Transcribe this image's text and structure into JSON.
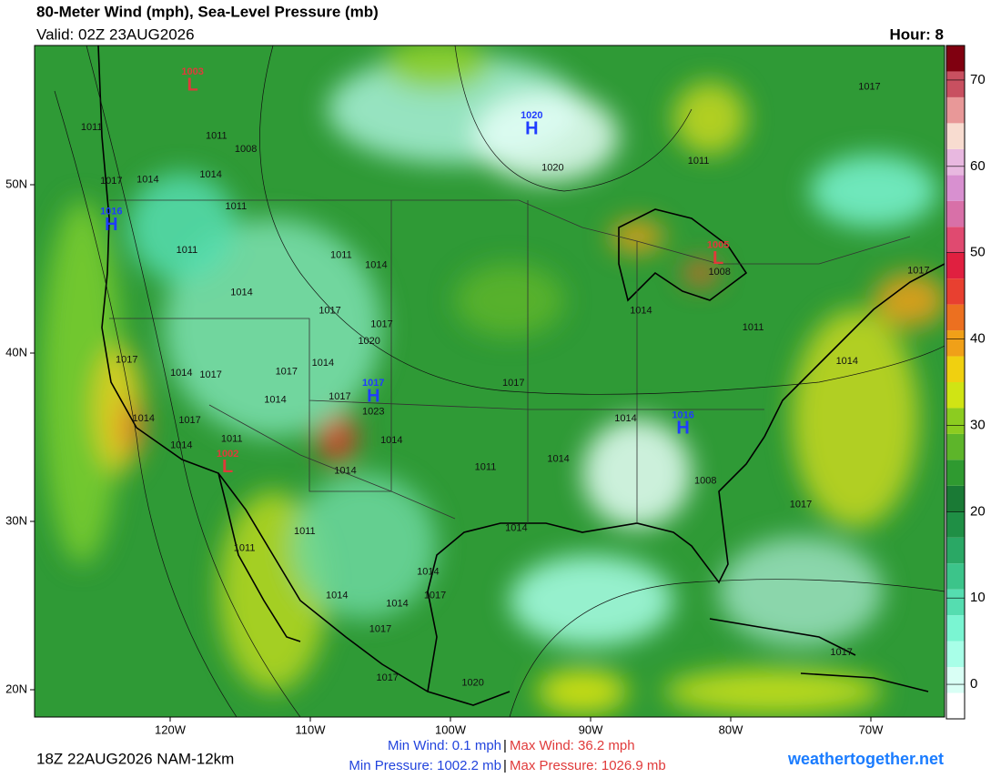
{
  "header": {
    "title": "80-Meter Wind (mph), Sea-Level Pressure (mb)",
    "valid": "Valid: 02Z 23AUG2026",
    "hour": "Hour: 8"
  },
  "map": {
    "lat_labels": [
      {
        "value": 50,
        "label": "50N"
      },
      {
        "value": 40,
        "label": "40N"
      },
      {
        "value": 30,
        "label": "30N"
      },
      {
        "value": 20,
        "label": "20N"
      }
    ],
    "lon_labels": [
      {
        "value": -120,
        "label": "120W"
      },
      {
        "value": -110,
        "label": "110W"
      },
      {
        "value": -100,
        "label": "100W"
      },
      {
        "value": -90,
        "label": "90W"
      },
      {
        "value": -80,
        "label": "80W"
      },
      {
        "value": -70,
        "label": "70W"
      }
    ],
    "centers": [
      {
        "label": "L",
        "pressure": "1003",
        "lon": -118.4,
        "lat": 56.0,
        "color": "#e03a3a"
      },
      {
        "label": "H",
        "pressure": "1020",
        "lon": -94.2,
        "lat": 53.4,
        "color": "#1f3cff"
      },
      {
        "label": "H",
        "pressure": "1016",
        "lon": -124.2,
        "lat": 47.7,
        "color": "#1f3cff"
      },
      {
        "label": "L",
        "pressure": "1005",
        "lon": -80.9,
        "lat": 45.7,
        "color": "#e03a3a"
      },
      {
        "label": "H",
        "pressure": "1017",
        "lon": -105.5,
        "lat": 37.5,
        "color": "#1f3cff"
      },
      {
        "label": "H",
        "pressure": "1016",
        "lon": -83.4,
        "lat": 35.6,
        "color": "#1f3cff"
      },
      {
        "label": "L",
        "pressure": "1002",
        "lon": -115.9,
        "lat": 33.3,
        "color": "#e03a3a"
      }
    ],
    "isobar_labels": [
      {
        "text": "1011",
        "lon": -125.6,
        "lat": 53.4
      },
      {
        "text": "1011",
        "lon": -116.7,
        "lat": 52.9
      },
      {
        "text": "1008",
        "lon": -114.6,
        "lat": 52.1
      },
      {
        "text": "1014",
        "lon": -117.1,
        "lat": 50.6
      },
      {
        "text": "1014",
        "lon": -121.6,
        "lat": 50.3
      },
      {
        "text": "1017",
        "lon": -124.2,
        "lat": 50.2
      },
      {
        "text": "1011",
        "lon": -115.3,
        "lat": 48.7
      },
      {
        "text": "1011",
        "lon": -118.8,
        "lat": 46.1
      },
      {
        "text": "1011",
        "lon": -107.8,
        "lat": 45.8
      },
      {
        "text": "1014",
        "lon": -105.3,
        "lat": 45.2
      },
      {
        "text": "1014",
        "lon": -114.9,
        "lat": 43.6
      },
      {
        "text": "1017",
        "lon": -108.6,
        "lat": 42.5
      },
      {
        "text": "1017",
        "lon": -104.9,
        "lat": 41.7
      },
      {
        "text": "1020",
        "lon": -105.8,
        "lat": 40.7
      },
      {
        "text": "1017",
        "lon": -123.1,
        "lat": 39.6
      },
      {
        "text": "1014",
        "lon": -119.2,
        "lat": 38.8
      },
      {
        "text": "1017",
        "lon": -117.1,
        "lat": 38.7
      },
      {
        "text": "1017",
        "lon": -111.7,
        "lat": 38.9
      },
      {
        "text": "1014",
        "lon": -109.1,
        "lat": 39.4
      },
      {
        "text": "1014",
        "lon": -112.5,
        "lat": 37.2
      },
      {
        "text": "1017",
        "lon": -107.9,
        "lat": 37.4
      },
      {
        "text": "1023",
        "lon": -105.5,
        "lat": 36.5
      },
      {
        "text": "1014",
        "lon": -121.9,
        "lat": 36.1
      },
      {
        "text": "1017",
        "lon": -118.6,
        "lat": 36.0
      },
      {
        "text": "1014",
        "lon": -119.2,
        "lat": 34.5
      },
      {
        "text": "1011",
        "lon": -115.6,
        "lat": 34.9
      },
      {
        "text": "1014",
        "lon": -104.2,
        "lat": 34.8
      },
      {
        "text": "1014",
        "lon": -107.5,
        "lat": 33.0
      },
      {
        "text": "1011",
        "lon": -97.5,
        "lat": 33.2
      },
      {
        "text": "1017",
        "lon": -95.5,
        "lat": 38.2
      },
      {
        "text": "1014",
        "lon": -87.5,
        "lat": 36.1
      },
      {
        "text": "1014",
        "lon": -92.3,
        "lat": 33.7
      },
      {
        "text": "1014",
        "lon": -86.4,
        "lat": 42.5
      },
      {
        "text": "1011",
        "lon": -78.4,
        "lat": 41.5
      },
      {
        "text": "1014",
        "lon": -71.7,
        "lat": 39.5
      },
      {
        "text": "1017",
        "lon": -70.1,
        "lat": 55.8
      },
      {
        "text": "1011",
        "lon": -82.3,
        "lat": 51.4
      },
      {
        "text": "1020",
        "lon": -92.7,
        "lat": 51.0
      },
      {
        "text": "1017",
        "lon": -66.6,
        "lat": 44.9
      },
      {
        "text": "1008",
        "lon": -80.8,
        "lat": 44.8
      },
      {
        "text": "1008",
        "lon": -81.8,
        "lat": 32.4
      },
      {
        "text": "1017",
        "lon": -75.0,
        "lat": 31.0
      },
      {
        "text": "1014",
        "lon": -95.3,
        "lat": 29.6
      },
      {
        "text": "1011",
        "lon": -110.4,
        "lat": 29.4
      },
      {
        "text": "1011",
        "lon": -114.7,
        "lat": 28.4
      },
      {
        "text": "1014",
        "lon": -108.1,
        "lat": 25.6
      },
      {
        "text": "1014",
        "lon": -101.6,
        "lat": 27.0
      },
      {
        "text": "1014",
        "lon": -103.8,
        "lat": 25.1
      },
      {
        "text": "1017",
        "lon": -101.1,
        "lat": 25.6
      },
      {
        "text": "1017",
        "lon": -105.0,
        "lat": 23.6
      },
      {
        "text": "1017",
        "lon": -104.5,
        "lat": 20.7
      },
      {
        "text": "1020",
        "lon": -98.4,
        "lat": 20.4
      },
      {
        "text": "1017",
        "lon": -72.1,
        "lat": 22.2
      }
    ]
  },
  "colorbar": {
    "lim": [
      -4,
      74
    ],
    "ticks": [
      0,
      10,
      20,
      30,
      40,
      50,
      60,
      70
    ],
    "colors": [
      "#ffffff",
      "#d9fff5",
      "#a8ffe8",
      "#7af5d2",
      "#55ddb0",
      "#3cc48a",
      "#2aa865",
      "#1f8f45",
      "#1a7a35",
      "#2f9a30",
      "#5db52a",
      "#8ccc20",
      "#d0e414",
      "#f0d010",
      "#f0a018",
      "#ec7020",
      "#e84030",
      "#e02040",
      "#e04a70",
      "#d870a8",
      "#d890d0",
      "#e8b8e0",
      "#f8dcd0",
      "#e89898",
      "#c85060",
      "#800010"
    ]
  },
  "footer": {
    "run": "18Z 22AUG2026 NAM-12km",
    "min_wind": "Min Wind:  0.1 mph",
    "max_wind": "Max Wind:  36.2 mph",
    "min_pressure": "Min Pressure: 1002.2 mb",
    "max_pressure": "Max Pressure: 1026.9 mb",
    "separator": "|",
    "site": "weathertogether.net"
  }
}
